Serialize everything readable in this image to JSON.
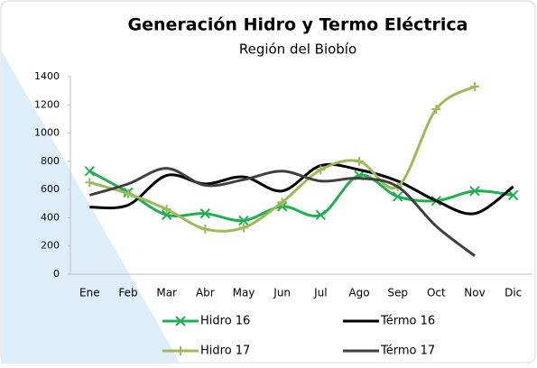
{
  "chart_data": {
    "type": "line",
    "title": "Generación Hidro y Termo Eléctrica",
    "subtitle": "Región del Biobío",
    "categories": [
      "Ene",
      "Feb",
      "Mar",
      "Abr",
      "May",
      "Jun",
      "Jul",
      "Ago",
      "Sep",
      "Oct",
      "Nov",
      "Dic"
    ],
    "series": [
      {
        "name": "Hidro 16",
        "color": "#1fb04f",
        "marker": "x",
        "values": [
          730,
          580,
          420,
          430,
          380,
          480,
          420,
          700,
          550,
          520,
          590,
          560
        ]
      },
      {
        "name": "Térmo 16",
        "color": "#000000",
        "values": [
          475,
          490,
          700,
          640,
          690,
          590,
          770,
          740,
          660,
          520,
          430,
          620
        ]
      },
      {
        "name": "Hidro 17",
        "color": "#9bbb59",
        "marker": "+",
        "values": [
          650,
          570,
          460,
          320,
          330,
          510,
          740,
          800,
          620,
          1170,
          1330,
          null
        ]
      },
      {
        "name": "Térmo 17",
        "color": "#404040",
        "values": [
          560,
          640,
          750,
          630,
          670,
          730,
          660,
          680,
          620,
          340,
          130,
          null
        ]
      }
    ],
    "ylim": [
      0,
      1400
    ],
    "yticks": [
      0,
      200,
      400,
      600,
      800,
      1000,
      1200,
      1400
    ],
    "grid": false,
    "smooth": true,
    "legend": "bottom"
  }
}
